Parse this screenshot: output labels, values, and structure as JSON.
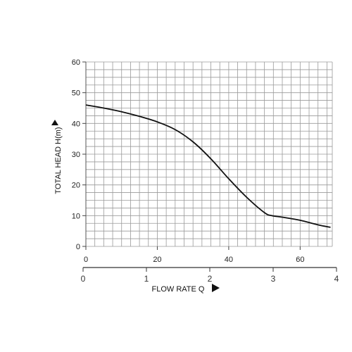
{
  "chart_data": {
    "type": "line",
    "ylabel": "TOTAL HEAD H(m)",
    "xlabel": "FLOW RATE Q",
    "x_primary": {
      "xlim": [
        0,
        69
      ],
      "ticks": [
        0,
        20,
        40,
        60
      ],
      "tick_labels": [
        "0",
        "20",
        "40",
        "60"
      ]
    },
    "x_secondary": {
      "xlim": [
        0,
        4
      ],
      "ticks": [
        0,
        1,
        2,
        3,
        4
      ],
      "tick_labels": [
        "0",
        "1",
        "2",
        "3",
        "4"
      ]
    },
    "ylim": [
      0,
      60
    ],
    "yticks": [
      0,
      10,
      20,
      30,
      40,
      50,
      60
    ],
    "ytick_labels": [
      "0",
      "10",
      "20",
      "30",
      "40",
      "50",
      "60"
    ],
    "grid": true,
    "grid_minor_x_step": 2.5,
    "grid_minor_y_step": 2.5,
    "series": [
      {
        "x": [
          0,
          5,
          10,
          15,
          20,
          25,
          30,
          35,
          40,
          45,
          50,
          52,
          55,
          60,
          65,
          68.5
        ],
        "y": [
          46,
          45,
          43.8,
          42.3,
          40.5,
          38,
          34,
          28.5,
          22,
          16,
          11,
          10,
          9.5,
          8.5,
          7,
          6.2
        ]
      }
    ],
    "line_color": "#111111",
    "grid_color": "#9a9a9a"
  }
}
